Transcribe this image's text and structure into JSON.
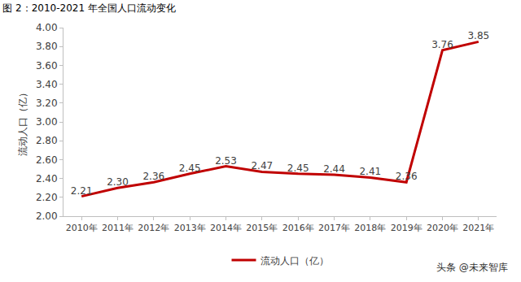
{
  "chart_data": {
    "type": "line",
    "title": "图 2：2010-2021 年全国人口流动变化",
    "y_label": "流动人口（亿）",
    "categories": [
      "2010年",
      "2011年",
      "2012年",
      "2013年",
      "2014年",
      "2015年",
      "2016年",
      "2017年",
      "2018年",
      "2019年",
      "2020年",
      "2021年"
    ],
    "series": [
      {
        "name": "流动人口（亿）",
        "color": "#c00000",
        "line_style": "solid",
        "values": [
          2.21,
          2.3,
          2.36,
          2.45,
          2.53,
          2.47,
          2.45,
          2.44,
          2.41,
          2.36,
          3.76,
          3.85
        ],
        "value_labels": [
          "2.21",
          "2.30",
          "2.36",
          "2.45",
          "2.53",
          "2.47",
          "2.45",
          "2.44",
          "2.41",
          "2.36",
          "3.76",
          "3.85"
        ]
      }
    ],
    "ylim": [
      2.0,
      4.0
    ],
    "yticks": [
      {
        "value": 2.0,
        "label": "2.00"
      },
      {
        "value": 2.2,
        "label": "2.20"
      },
      {
        "value": 2.4,
        "label": "2.40"
      },
      {
        "value": 2.6,
        "label": "2.60"
      },
      {
        "value": 2.8,
        "label": "2.80"
      },
      {
        "value": 3.0,
        "label": "3.00"
      },
      {
        "value": 3.2,
        "label": "3.20"
      },
      {
        "value": 3.4,
        "label": "3.40"
      },
      {
        "value": 3.6,
        "label": "3.60"
      },
      {
        "value": 3.8,
        "label": "3.80"
      },
      {
        "value": 4.0,
        "label": "4.00"
      }
    ],
    "grid": false,
    "data_labels": true,
    "legend": "bottom",
    "annotations": [
      {
        "text": "头条 @未来智库"
      }
    ]
  }
}
